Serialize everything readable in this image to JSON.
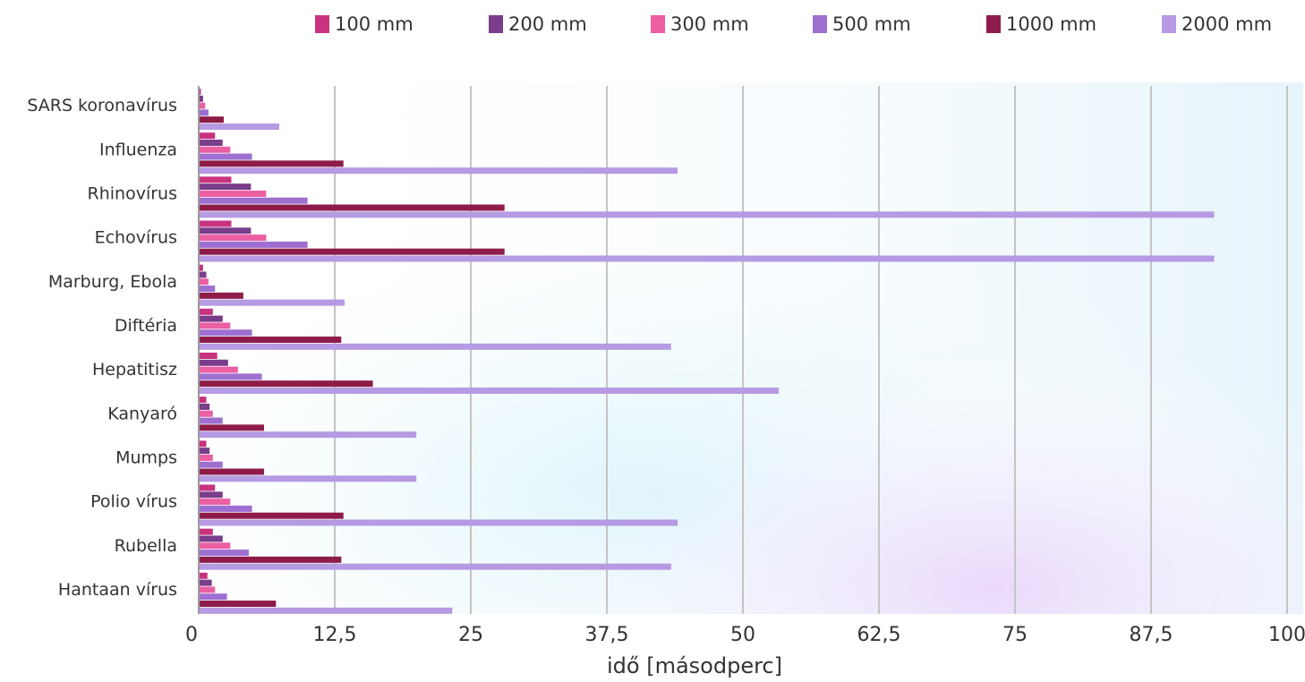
{
  "chart_data": {
    "type": "bar",
    "orientation": "horizontal",
    "title": "",
    "xlabel": "idő [másodperc]",
    "ylabel": "",
    "xlim": [
      0,
      100
    ],
    "x_ticks": [
      "0",
      "12,5",
      "25",
      "37,5",
      "50",
      "62,5",
      "75",
      "87,5",
      "100"
    ],
    "x_tick_values": [
      0,
      12.5,
      25,
      37.5,
      50,
      62.5,
      75,
      87.5,
      100
    ],
    "grid": "vertical",
    "legend_position": "top",
    "categories": [
      "SARS koronavírus",
      "Influenza",
      "Rhinovírus",
      "Echovírus",
      "Marburg, Ebola",
      "Diftéria",
      "Hepatitisz",
      "Kanyaró",
      "Mumps",
      "Polio vírus",
      "Rubella",
      "Hantaan vírus"
    ],
    "series": [
      {
        "name": "100 mm",
        "color": "#c8327f",
        "values": [
          0.2,
          1.5,
          3.0,
          3.0,
          0.4,
          1.3,
          1.7,
          0.7,
          0.7,
          1.5,
          1.3,
          0.8
        ]
      },
      {
        "name": "200 mm",
        "color": "#7a3d8c",
        "values": [
          0.4,
          2.2,
          4.8,
          4.8,
          0.7,
          2.2,
          2.7,
          1.0,
          1.0,
          2.2,
          2.2,
          1.2
        ]
      },
      {
        "name": "300 mm",
        "color": "#ec5fa3",
        "values": [
          0.6,
          2.9,
          6.2,
          6.2,
          0.9,
          2.9,
          3.6,
          1.3,
          1.3,
          2.9,
          2.9,
          1.5
        ]
      },
      {
        "name": "500 mm",
        "color": "#9e6fd1",
        "values": [
          0.9,
          4.9,
          10.0,
          10.0,
          1.5,
          4.9,
          5.8,
          2.2,
          2.2,
          4.9,
          4.6,
          2.6
        ]
      },
      {
        "name": "1000 mm",
        "color": "#8e1c4a",
        "values": [
          2.3,
          13.3,
          28.1,
          28.1,
          4.1,
          13.1,
          16.0,
          6.0,
          6.0,
          13.3,
          13.1,
          7.1
        ]
      },
      {
        "name": "2000 mm",
        "color": "#b69ae3",
        "values": [
          7.4,
          44.0,
          93.3,
          93.3,
          13.4,
          43.4,
          53.3,
          20.0,
          20.0,
          44.0,
          43.4,
          23.3
        ]
      }
    ]
  }
}
